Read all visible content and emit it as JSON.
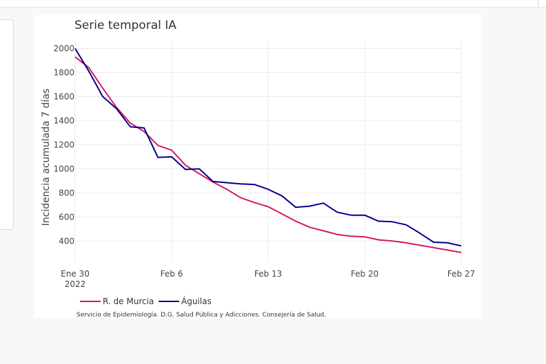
{
  "chart_data": {
    "type": "line",
    "title": "Serie temporal IA",
    "ylabel": "Incidencia acumulada 7 días",
    "xlabel": "",
    "ylim": [
      230,
      2020
    ],
    "xlim": [
      0,
      28
    ],
    "yticks": [
      400,
      600,
      800,
      1000,
      1200,
      1400,
      1600,
      1800,
      2000
    ],
    "xticks": [
      {
        "day": 0,
        "label": "Ene 30",
        "sublabel": "2022"
      },
      {
        "day": 7,
        "label": "Feb 6",
        "sublabel": ""
      },
      {
        "day": 14,
        "label": "Feb 13",
        "sublabel": ""
      },
      {
        "day": 21,
        "label": "Feb 20",
        "sublabel": ""
      },
      {
        "day": 28,
        "label": "Feb 27",
        "sublabel": ""
      }
    ],
    "grid": true,
    "legend_position": "bottom-left",
    "series": [
      {
        "name": "R. de Murcia",
        "color": "#d6185f",
        "x": [
          0,
          1,
          2,
          3,
          4,
          5,
          6,
          7,
          8,
          9,
          10,
          11,
          12,
          13,
          14,
          15,
          16,
          17,
          18,
          19,
          20,
          21,
          22,
          23,
          24,
          25,
          26,
          27,
          28
        ],
        "values": [
          1930,
          1840,
          1670,
          1510,
          1380,
          1310,
          1195,
          1155,
          1030,
          960,
          890,
          830,
          760,
          720,
          685,
          625,
          565,
          515,
          485,
          455,
          440,
          435,
          410,
          400,
          385,
          365,
          345,
          325,
          305
        ]
      },
      {
        "name": "Águilas",
        "color": "#00008b",
        "x": [
          0,
          1,
          2,
          3,
          4,
          5,
          6,
          7,
          8,
          9,
          10,
          11,
          12,
          13,
          14,
          15,
          16,
          17,
          18,
          19,
          20,
          21,
          22,
          23,
          24,
          25,
          26,
          27,
          28
        ],
        "values": [
          2000,
          1810,
          1600,
          1500,
          1350,
          1340,
          1095,
          1100,
          995,
          1000,
          895,
          885,
          875,
          870,
          830,
          775,
          680,
          690,
          715,
          640,
          615,
          615,
          565,
          560,
          535,
          465,
          390,
          385,
          360
        ]
      }
    ]
  },
  "legend": {
    "items": [
      {
        "label": "R. de Murcia",
        "color": "#d6185f"
      },
      {
        "label": "Águilas",
        "color": "#00008b"
      }
    ]
  },
  "source_note": "Servicio de Epidemiología. D.G. Salud Pública y Adicciones. Consejería de Salud."
}
